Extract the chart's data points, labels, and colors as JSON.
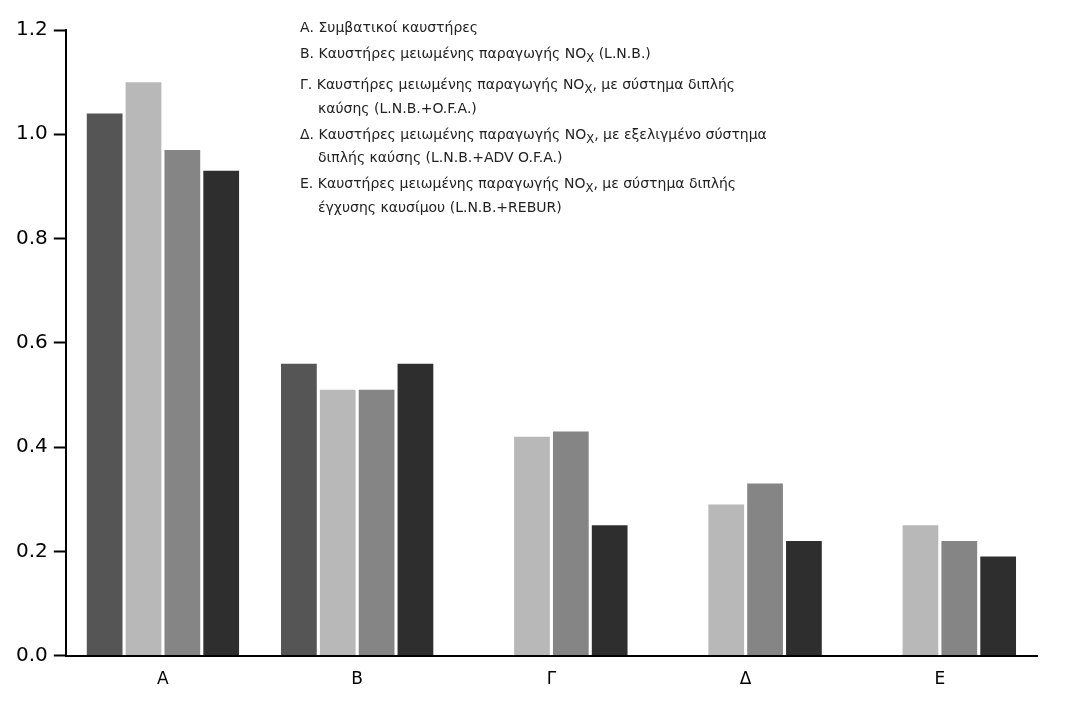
{
  "chart_data": {
    "type": "bar",
    "categories": [
      "Α",
      "Β",
      "Γ",
      "Δ",
      "Ε"
    ],
    "series": [
      {
        "color": "#555555",
        "values": [
          1.04,
          0.56,
          null,
          null,
          null
        ]
      },
      {
        "color": "#b8b8b8",
        "values": [
          1.1,
          0.51,
          0.42,
          0.29,
          0.25
        ]
      },
      {
        "color": "#858585",
        "values": [
          0.97,
          0.51,
          0.43,
          0.33,
          0.22
        ]
      },
      {
        "color": "#2e2e2e",
        "values": [
          0.93,
          0.56,
          0.25,
          0.22,
          0.19
        ]
      }
    ],
    "ylim": [
      0,
      1.2
    ],
    "yticks": [
      {
        "value": 0,
        "label": "0.0"
      },
      0.2,
      0.4,
      0.6,
      0.8,
      {
        "value": 1,
        "label": "1.0"
      },
      1.2
    ],
    "grid": false,
    "legend": false,
    "annotations": [
      "Α. Συμβατικοί καυστήρες",
      "Β. Καυστήρες μειωμένης παραγωγής NO$_{X}$ (L.N.B.)",
      "Γ. Καυστήρες μειωμένης παραγωγής NO$_{X}$, με σύστημα διπλής καύσης (L.N.B.+O.F.A.)",
      "Δ. Καυστήρες μειωμένης παραγωγής NO$_{X}$, με εξελιγμένο σύστημα διπλής καύσης (L.N.B.+ADV O.F.A.)",
      "Ε. Καυστήρες μειωμένης παραγωγής NO$_{X}$, με σύστημα διπλής έγχυσης καυσίμου (L.N.B.+REBUR)"
    ]
  }
}
